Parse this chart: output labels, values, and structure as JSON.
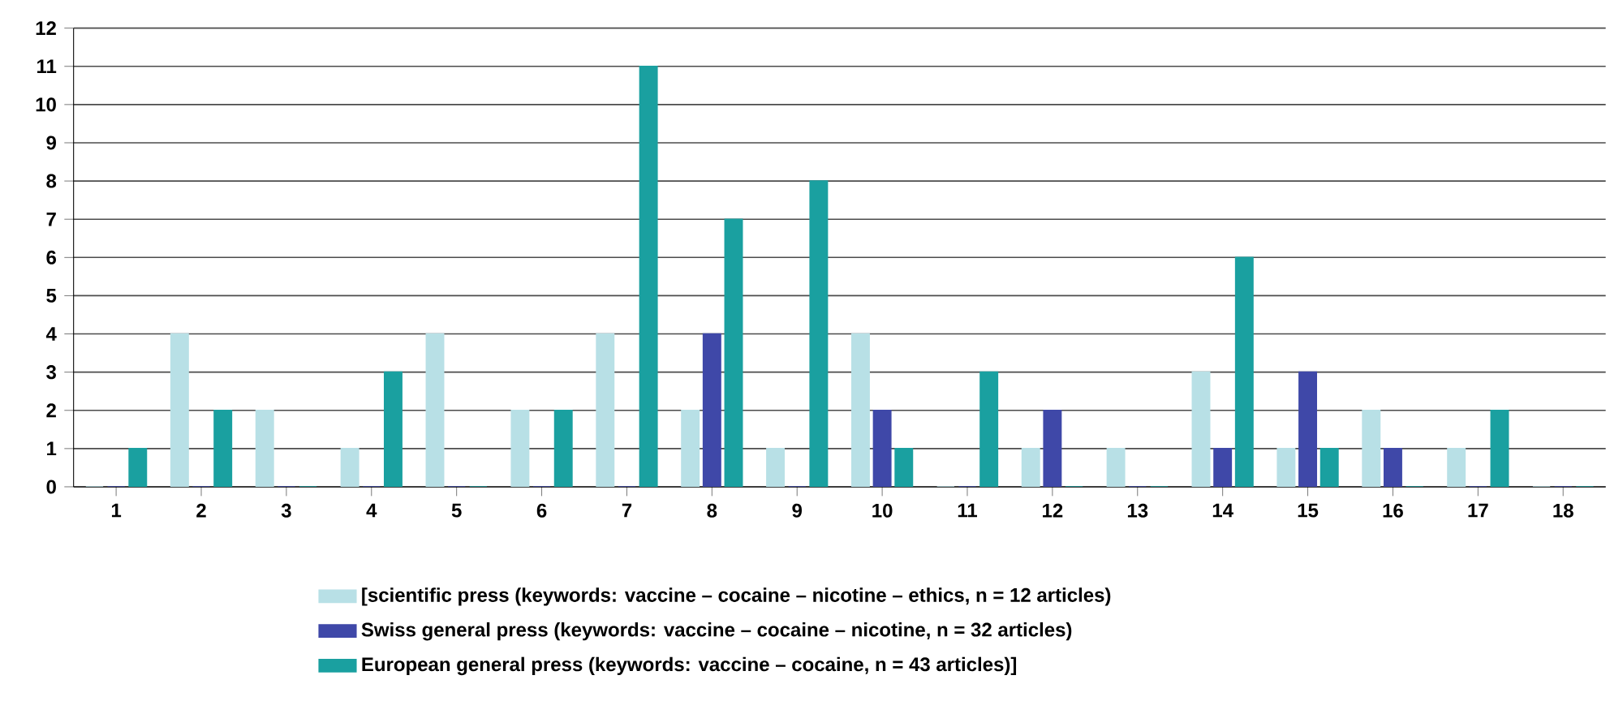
{
  "chart_data": {
    "type": "bar",
    "categories": [
      "1",
      "2",
      "3",
      "4",
      "5",
      "6",
      "7",
      "8",
      "9",
      "10",
      "11",
      "12",
      "13",
      "14",
      "15",
      "16",
      "17",
      "18"
    ],
    "series": [
      {
        "name": "[scientific press (keywords: vaccine – cocaine – nicotine – ethics, n = 12 articles)",
        "color": "#b8e0e6",
        "values": [
          0,
          4,
          2,
          1,
          4,
          2,
          4,
          2,
          1,
          4,
          0,
          1,
          1,
          3,
          1,
          2,
          1,
          0
        ]
      },
      {
        "name": "Swiss general press (keywords: vaccine – cocaine – nicotine, n = 32 articles)",
        "color": "#3f48a8",
        "values": [
          0,
          0,
          0,
          0,
          0,
          0,
          0,
          4,
          0,
          2,
          0,
          2,
          0,
          1,
          3,
          1,
          0,
          0
        ]
      },
      {
        "name": "European general press (keywords: vaccine – cocaine, n = 43 articles)]",
        "color": "#1aa0a0",
        "values": [
          1,
          2,
          0,
          3,
          0,
          2,
          11,
          7,
          8,
          1,
          3,
          0,
          0,
          6,
          1,
          0,
          2,
          0
        ]
      }
    ],
    "ylim": [
      0,
      12
    ],
    "yticks": [
      0,
      1,
      2,
      3,
      4,
      5,
      6,
      7,
      8,
      9,
      10,
      11,
      12
    ],
    "grid": "y",
    "legend": "bottom"
  }
}
